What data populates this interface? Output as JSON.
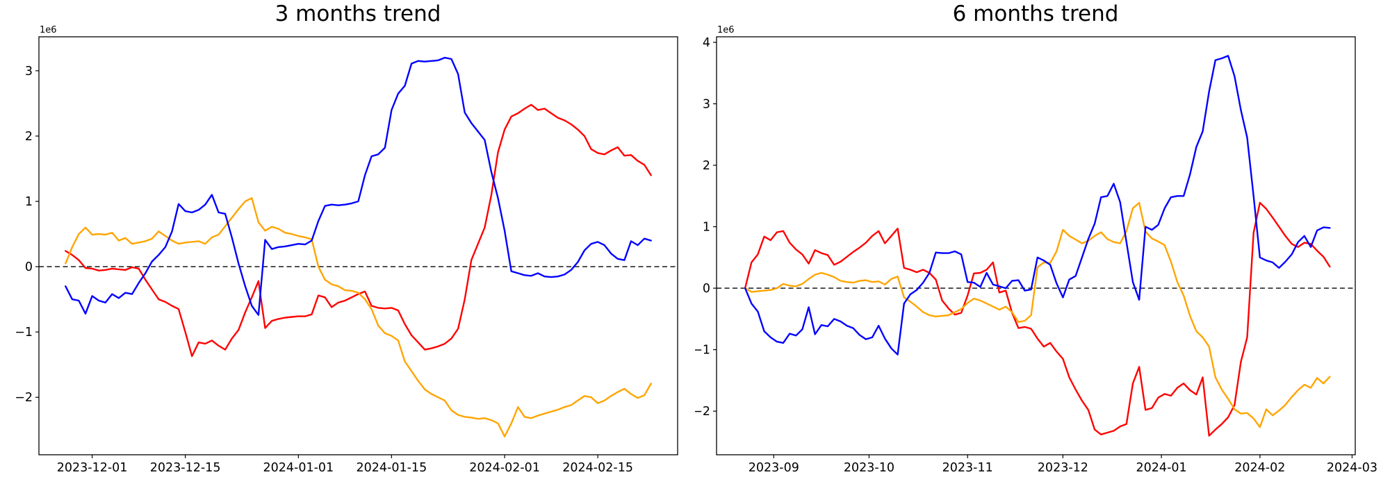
{
  "figure": {
    "background": "#ffffff"
  },
  "colors": {
    "series_blue": "#0000ff",
    "series_red": "#ff0000",
    "series_orange": "#ffa500",
    "zero_line": "#000000"
  },
  "chart_data": [
    {
      "type": "line",
      "title": "3 months trend",
      "offset_text": "1e6",
      "xlabel": "",
      "ylabel": "",
      "grid": false,
      "legend": "none",
      "zero_line": {
        "style": "dashed",
        "color": "#000000",
        "value": 0
      },
      "xlim": [
        "2023-11-23",
        "2024-02-27"
      ],
      "ylim": [
        -2.88,
        3.52
      ],
      "yticks": [
        {
          "label": "−2",
          "value": -2
        },
        {
          "label": "−1",
          "value": -1
        },
        {
          "label": "0",
          "value": 0
        },
        {
          "label": "1",
          "value": 1
        },
        {
          "label": "2",
          "value": 2
        },
        {
          "label": "3",
          "value": 3
        }
      ],
      "xticks": [
        {
          "label": "2023-12-01",
          "date": "2023-12-01"
        },
        {
          "label": "2023-12-15",
          "date": "2023-12-15"
        },
        {
          "label": "2024-01-01",
          "date": "2024-01-01"
        },
        {
          "label": "2024-01-15",
          "date": "2024-01-15"
        },
        {
          "label": "2024-02-01",
          "date": "2024-02-01"
        },
        {
          "label": "2024-02-15",
          "date": "2024-02-15"
        }
      ],
      "x_dates": [
        "2023-11-27",
        "2023-11-28",
        "2023-11-29",
        "2023-11-30",
        "2023-12-01",
        "2023-12-02",
        "2023-12-03",
        "2023-12-04",
        "2023-12-05",
        "2023-12-06",
        "2023-12-07",
        "2023-12-08",
        "2023-12-09",
        "2023-12-10",
        "2023-12-11",
        "2023-12-12",
        "2023-12-13",
        "2023-12-14",
        "2023-12-15",
        "2023-12-16",
        "2023-12-17",
        "2023-12-18",
        "2023-12-19",
        "2023-12-20",
        "2023-12-21",
        "2023-12-22",
        "2023-12-23",
        "2023-12-24",
        "2023-12-25",
        "2023-12-26",
        "2023-12-27",
        "2023-12-28",
        "2023-12-29",
        "2023-12-30",
        "2023-12-31",
        "2024-01-01",
        "2024-01-02",
        "2024-01-03",
        "2024-01-04",
        "2024-01-05",
        "2024-01-06",
        "2024-01-07",
        "2024-01-08",
        "2024-01-09",
        "2024-01-10",
        "2024-01-11",
        "2024-01-12",
        "2024-01-13",
        "2024-01-14",
        "2024-01-15",
        "2024-01-16",
        "2024-01-17",
        "2024-01-18",
        "2024-01-19",
        "2024-01-20",
        "2024-01-21",
        "2024-01-22",
        "2024-01-23",
        "2024-01-24",
        "2024-01-25",
        "2024-01-26",
        "2024-01-27",
        "2024-01-28",
        "2024-01-29",
        "2024-01-30",
        "2024-01-31",
        "2024-02-01",
        "2024-02-02",
        "2024-02-03",
        "2024-02-04",
        "2024-02-05",
        "2024-02-06",
        "2024-02-07",
        "2024-02-08",
        "2024-02-09",
        "2024-02-10",
        "2024-02-11",
        "2024-02-12",
        "2024-02-13",
        "2024-02-14",
        "2024-02-15",
        "2024-02-16",
        "2024-02-17",
        "2024-02-18",
        "2024-02-19",
        "2024-02-20",
        "2024-02-21",
        "2024-02-22",
        "2024-02-23"
      ],
      "series": [
        {
          "name": "red",
          "color": "#ff0000",
          "values": [
            0.24,
            0.18,
            0.1,
            -0.02,
            -0.03,
            -0.06,
            -0.05,
            -0.03,
            -0.04,
            -0.05,
            -0.01,
            -0.03,
            -0.2,
            -0.35,
            -0.5,
            -0.54,
            -0.6,
            -0.65,
            -1.0,
            -1.37,
            -1.16,
            -1.18,
            -1.13,
            -1.21,
            -1.27,
            -1.1,
            -0.97,
            -0.7,
            -0.47,
            -0.22,
            -0.94,
            -0.83,
            -0.8,
            -0.78,
            -0.77,
            -0.76,
            -0.76,
            -0.73,
            -0.44,
            -0.47,
            -0.62,
            -0.55,
            -0.52,
            -0.47,
            -0.42,
            -0.38,
            -0.6,
            -0.63,
            -0.64,
            -0.63,
            -0.67,
            -0.88,
            -1.05,
            -1.16,
            -1.27,
            -1.25,
            -1.22,
            -1.18,
            -1.1,
            -0.95,
            -0.5,
            0.1,
            0.35,
            0.6,
            1.1,
            1.75,
            2.1,
            2.3,
            2.35,
            2.42,
            2.48,
            2.4,
            2.42,
            2.35,
            2.28,
            2.24,
            2.18,
            2.1,
            2.0,
            1.8,
            1.74,
            1.72,
            1.78,
            1.83,
            1.7,
            1.71,
            1.62,
            1.56,
            1.4
          ]
        },
        {
          "name": "orange",
          "color": "#ffa500",
          "values": [
            0.05,
            0.3,
            0.5,
            0.6,
            0.49,
            0.5,
            0.49,
            0.52,
            0.4,
            0.44,
            0.35,
            0.37,
            0.39,
            0.43,
            0.54,
            0.47,
            0.4,
            0.35,
            0.37,
            0.38,
            0.39,
            0.35,
            0.45,
            0.49,
            0.62,
            0.75,
            0.88,
            1.0,
            1.05,
            0.68,
            0.55,
            0.61,
            0.58,
            0.52,
            0.5,
            0.47,
            0.45,
            0.42,
            0.0,
            -0.2,
            -0.27,
            -0.3,
            -0.36,
            -0.37,
            -0.4,
            -0.5,
            -0.65,
            -0.9,
            -1.02,
            -1.06,
            -1.13,
            -1.45,
            -1.6,
            -1.75,
            -1.88,
            -1.95,
            -2.0,
            -2.05,
            -2.2,
            -2.27,
            -2.3,
            -2.31,
            -2.33,
            -2.32,
            -2.35,
            -2.4,
            -2.6,
            -2.4,
            -2.15,
            -2.3,
            -2.32,
            -2.28,
            -2.25,
            -2.22,
            -2.19,
            -2.15,
            -2.12,
            -2.05,
            -1.98,
            -2.0,
            -2.09,
            -2.05,
            -1.98,
            -1.92,
            -1.87,
            -1.95,
            -2.01,
            -1.97,
            -1.79
          ]
        },
        {
          "name": "blue",
          "color": "#0000ff",
          "values": [
            -0.3,
            -0.5,
            -0.52,
            -0.72,
            -0.45,
            -0.52,
            -0.55,
            -0.42,
            -0.48,
            -0.4,
            -0.42,
            -0.25,
            -0.1,
            0.08,
            0.18,
            0.3,
            0.54,
            0.96,
            0.85,
            0.83,
            0.87,
            0.95,
            1.1,
            0.83,
            0.81,
            0.45,
            0.05,
            -0.3,
            -0.6,
            -0.74,
            0.41,
            0.27,
            0.3,
            0.31,
            0.33,
            0.35,
            0.34,
            0.4,
            0.7,
            0.93,
            0.95,
            0.94,
            0.95,
            0.97,
            1.0,
            1.4,
            1.69,
            1.72,
            1.82,
            2.4,
            2.65,
            2.77,
            3.11,
            3.15,
            3.14,
            3.15,
            3.16,
            3.2,
            3.18,
            2.95,
            2.36,
            2.2,
            2.07,
            1.94,
            1.45,
            1.05,
            0.55,
            -0.07,
            -0.1,
            -0.13,
            -0.14,
            -0.1,
            -0.15,
            -0.16,
            -0.15,
            -0.12,
            -0.05,
            0.07,
            0.25,
            0.35,
            0.38,
            0.33,
            0.2,
            0.12,
            0.1,
            0.39,
            0.33,
            0.43,
            0.4
          ]
        }
      ]
    },
    {
      "type": "line",
      "title": "6 months trend",
      "offset_text": "1e6",
      "xlabel": "",
      "ylabel": "",
      "grid": false,
      "legend": "none",
      "zero_line": {
        "style": "dashed",
        "color": "#000000",
        "value": 0
      },
      "xlim": [
        "2023-08-14",
        "2024-03-02"
      ],
      "ylim": [
        -2.71,
        4.09
      ],
      "yticks": [
        {
          "label": "−2",
          "value": -2
        },
        {
          "label": "−1",
          "value": -1
        },
        {
          "label": "0",
          "value": 0
        },
        {
          "label": "1",
          "value": 1
        },
        {
          "label": "2",
          "value": 2
        },
        {
          "label": "3",
          "value": 3
        },
        {
          "label": "4",
          "value": 4
        }
      ],
      "xticks": [
        {
          "label": "2023-09",
          "date": "2023-09-01"
        },
        {
          "label": "2023-10",
          "date": "2023-10-01"
        },
        {
          "label": "2023-11",
          "date": "2023-11-01"
        },
        {
          "label": "2023-12",
          "date": "2023-12-01"
        },
        {
          "label": "2024-01",
          "date": "2024-01-01"
        },
        {
          "label": "2024-02",
          "date": "2024-02-01"
        },
        {
          "label": "2024-03",
          "date": "2024-03-01"
        }
      ],
      "x_dates": [
        "2023-08-23",
        "2023-08-25",
        "2023-08-27",
        "2023-08-29",
        "2023-08-31",
        "2023-09-02",
        "2023-09-04",
        "2023-09-06",
        "2023-09-08",
        "2023-09-10",
        "2023-09-12",
        "2023-09-14",
        "2023-09-16",
        "2023-09-18",
        "2023-09-20",
        "2023-09-22",
        "2023-09-24",
        "2023-09-26",
        "2023-09-28",
        "2023-09-30",
        "2023-10-02",
        "2023-10-04",
        "2023-10-06",
        "2023-10-08",
        "2023-10-10",
        "2023-10-12",
        "2023-10-14",
        "2023-10-16",
        "2023-10-18",
        "2023-10-20",
        "2023-10-22",
        "2023-10-24",
        "2023-10-26",
        "2023-10-28",
        "2023-10-30",
        "2023-11-01",
        "2023-11-03",
        "2023-11-05",
        "2023-11-07",
        "2023-11-09",
        "2023-11-11",
        "2023-11-13",
        "2023-11-15",
        "2023-11-17",
        "2023-11-19",
        "2023-11-21",
        "2023-11-23",
        "2023-11-25",
        "2023-11-27",
        "2023-11-29",
        "2023-12-01",
        "2023-12-03",
        "2023-12-05",
        "2023-12-07",
        "2023-12-09",
        "2023-12-11",
        "2023-12-13",
        "2023-12-15",
        "2023-12-17",
        "2023-12-19",
        "2023-12-21",
        "2023-12-23",
        "2023-12-25",
        "2023-12-27",
        "2023-12-29",
        "2023-12-31",
        "2024-01-02",
        "2024-01-04",
        "2024-01-06",
        "2024-01-08",
        "2024-01-10",
        "2024-01-12",
        "2024-01-14",
        "2024-01-16",
        "2024-01-18",
        "2024-01-20",
        "2024-01-22",
        "2024-01-24",
        "2024-01-26",
        "2024-01-28",
        "2024-01-30",
        "2024-02-01",
        "2024-02-03",
        "2024-02-05",
        "2024-02-07",
        "2024-02-09",
        "2024-02-11",
        "2024-02-13",
        "2024-02-15",
        "2024-02-17",
        "2024-02-19",
        "2024-02-21",
        "2024-02-23"
      ],
      "series": [
        {
          "name": "red",
          "color": "#ff0000",
          "values": [
            0.0,
            0.42,
            0.55,
            0.84,
            0.78,
            0.91,
            0.93,
            0.74,
            0.63,
            0.55,
            0.4,
            0.62,
            0.57,
            0.54,
            0.38,
            0.43,
            0.51,
            0.59,
            0.66,
            0.74,
            0.85,
            0.93,
            0.73,
            0.85,
            0.97,
            0.33,
            0.3,
            0.26,
            0.3,
            0.25,
            0.14,
            -0.2,
            -0.33,
            -0.43,
            -0.4,
            -0.12,
            0.24,
            0.25,
            0.3,
            0.42,
            -0.07,
            -0.04,
            -0.4,
            -0.65,
            -0.63,
            -0.66,
            -0.82,
            -0.95,
            -0.89,
            -1.03,
            -1.15,
            -1.45,
            -1.65,
            -1.83,
            -1.98,
            -2.3,
            -2.38,
            -2.35,
            -2.32,
            -2.25,
            -2.21,
            -1.55,
            -1.28,
            -1.98,
            -1.95,
            -1.78,
            -1.72,
            -1.75,
            -1.62,
            -1.55,
            -1.66,
            -1.73,
            -1.45,
            -2.4,
            -2.3,
            -2.21,
            -2.1,
            -1.9,
            -1.2,
            -0.8,
            0.9,
            1.39,
            1.29,
            1.15,
            1.0,
            0.85,
            0.72,
            0.67,
            0.74,
            0.72,
            0.61,
            0.51,
            0.35
          ]
        },
        {
          "name": "orange",
          "color": "#ffa500",
          "values": [
            0.0,
            -0.06,
            -0.05,
            -0.04,
            -0.03,
            0.0,
            0.07,
            0.04,
            0.03,
            0.07,
            0.15,
            0.22,
            0.25,
            0.22,
            0.18,
            0.12,
            0.1,
            0.09,
            0.12,
            0.13,
            0.1,
            0.11,
            0.06,
            0.15,
            0.19,
            -0.15,
            -0.22,
            -0.3,
            -0.39,
            -0.44,
            -0.46,
            -0.45,
            -0.44,
            -0.39,
            -0.34,
            -0.24,
            -0.17,
            -0.2,
            -0.25,
            -0.3,
            -0.35,
            -0.3,
            -0.39,
            -0.55,
            -0.53,
            -0.44,
            0.34,
            0.42,
            0.41,
            0.6,
            0.95,
            0.85,
            0.79,
            0.73,
            0.77,
            0.85,
            0.91,
            0.8,
            0.75,
            0.73,
            0.93,
            1.3,
            1.39,
            0.92,
            0.81,
            0.76,
            0.7,
            0.43,
            0.1,
            -0.12,
            -0.45,
            -0.7,
            -0.8,
            -0.95,
            -1.45,
            -1.65,
            -1.8,
            -1.97,
            -2.04,
            -2.03,
            -2.12,
            -2.26,
            -1.97,
            -2.07,
            -1.99,
            -1.9,
            -1.77,
            -1.66,
            -1.57,
            -1.62,
            -1.46,
            -1.55,
            -1.44
          ]
        },
        {
          "name": "blue",
          "color": "#0000ff",
          "values": [
            0.0,
            -0.25,
            -0.38,
            -0.7,
            -0.8,
            -0.87,
            -0.89,
            -0.74,
            -0.77,
            -0.67,
            -0.31,
            -0.75,
            -0.6,
            -0.62,
            -0.5,
            -0.54,
            -0.61,
            -0.65,
            -0.76,
            -0.83,
            -0.8,
            -0.61,
            -0.82,
            -0.98,
            -1.08,
            -0.25,
            -0.1,
            -0.03,
            0.09,
            0.25,
            0.58,
            0.57,
            0.57,
            0.6,
            0.55,
            0.1,
            0.09,
            0.02,
            0.25,
            0.06,
            0.03,
            0.0,
            0.12,
            0.13,
            -0.04,
            -0.02,
            0.5,
            0.45,
            0.38,
            0.08,
            -0.15,
            0.14,
            0.2,
            0.5,
            0.8,
            1.05,
            1.48,
            1.5,
            1.7,
            1.4,
            0.75,
            0.1,
            -0.19,
            1.0,
            0.95,
            1.03,
            1.3,
            1.48,
            1.5,
            1.5,
            1.85,
            2.3,
            2.55,
            3.2,
            3.71,
            3.74,
            3.78,
            3.45,
            2.9,
            2.45,
            1.5,
            0.5,
            0.45,
            0.42,
            0.33,
            0.43,
            0.55,
            0.75,
            0.85,
            0.67,
            0.94,
            0.99,
            0.98
          ]
        }
      ]
    }
  ]
}
